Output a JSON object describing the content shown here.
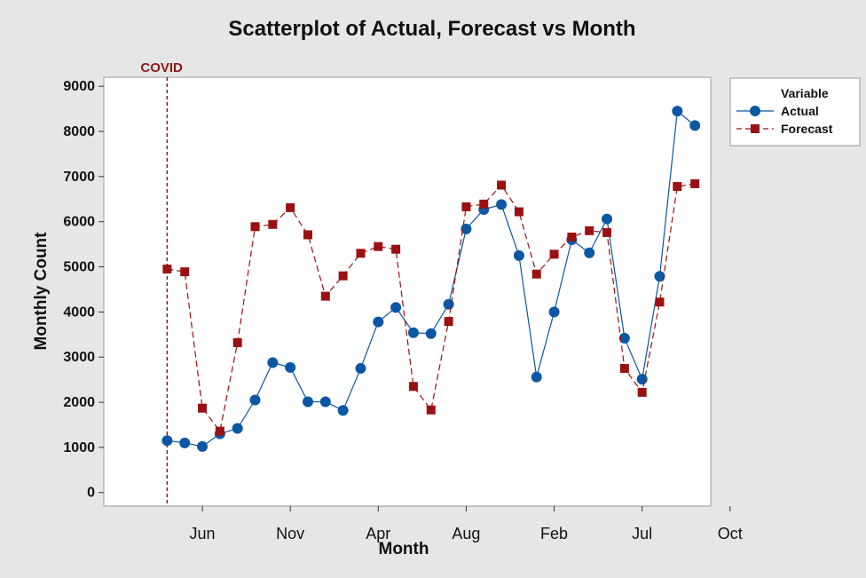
{
  "chart_data": {
    "type": "scatter",
    "title": "Scatterplot of Actual, Forecast vs Month",
    "xlabel": "Month",
    "ylabel": "Monthly Count",
    "ylim": [
      -300,
      9200
    ],
    "yticks": [
      0,
      1000,
      2000,
      3000,
      4000,
      5000,
      6000,
      7000,
      8000,
      9000
    ],
    "ytick_labels": [
      "0",
      "1000",
      "2000",
      "3000",
      "4000",
      "5000",
      "6000",
      "7000",
      "8000",
      "9000"
    ],
    "x_index_range": [
      -3.6,
      30.9
    ],
    "xticks": [
      2,
      7,
      12,
      17,
      22,
      27,
      32
    ],
    "xtick_labels": [
      "Jun",
      "Nov",
      "Apr",
      "Aug",
      "Feb",
      "Jul",
      "Oct"
    ],
    "grid": false,
    "legend": {
      "title": "Variable",
      "position": "right"
    },
    "annotations": [
      {
        "text": "COVID",
        "x_index": 0,
        "color": "#8b1a1a",
        "style": "dashed-vertical-line"
      }
    ],
    "series": [
      {
        "name": "Actual",
        "marker": "circle",
        "line": "solid",
        "color": "#0b57a4",
        "x_index": [
          0,
          1,
          2,
          3,
          4,
          5,
          6,
          7,
          8,
          9,
          10,
          11,
          12,
          13,
          14,
          15,
          16,
          17,
          18,
          19,
          20,
          21,
          22,
          23,
          24,
          25,
          26,
          27,
          28,
          29,
          30
        ],
        "values": [
          1150,
          1100,
          1020,
          1300,
          1420,
          2050,
          2880,
          2770,
          2010,
          2010,
          1820,
          2750,
          3780,
          4100,
          3540,
          3520,
          4170,
          5840,
          6270,
          6380,
          5250,
          2560,
          4000,
          5600,
          5310,
          6060,
          3420,
          2510,
          4790,
          8450,
          8130
        ]
      },
      {
        "name": "Forecast",
        "marker": "square",
        "line": "dashed",
        "color": "#9b1111",
        "x_index": [
          0,
          1,
          2,
          3,
          4,
          5,
          6,
          7,
          8,
          9,
          10,
          11,
          12,
          13,
          14,
          15,
          16,
          17,
          18,
          19,
          20,
          21,
          22,
          23,
          24,
          25,
          26,
          27,
          28,
          29,
          30
        ],
        "values": [
          4950,
          4890,
          1870,
          1360,
          3320,
          5890,
          5940,
          6310,
          5710,
          4350,
          4800,
          5300,
          5450,
          5390,
          2350,
          1830,
          3790,
          6330,
          6390,
          6810,
          6220,
          4840,
          5280,
          5660,
          5800,
          5760,
          2750,
          2220,
          4220,
          6780,
          6840
        ]
      }
    ]
  }
}
